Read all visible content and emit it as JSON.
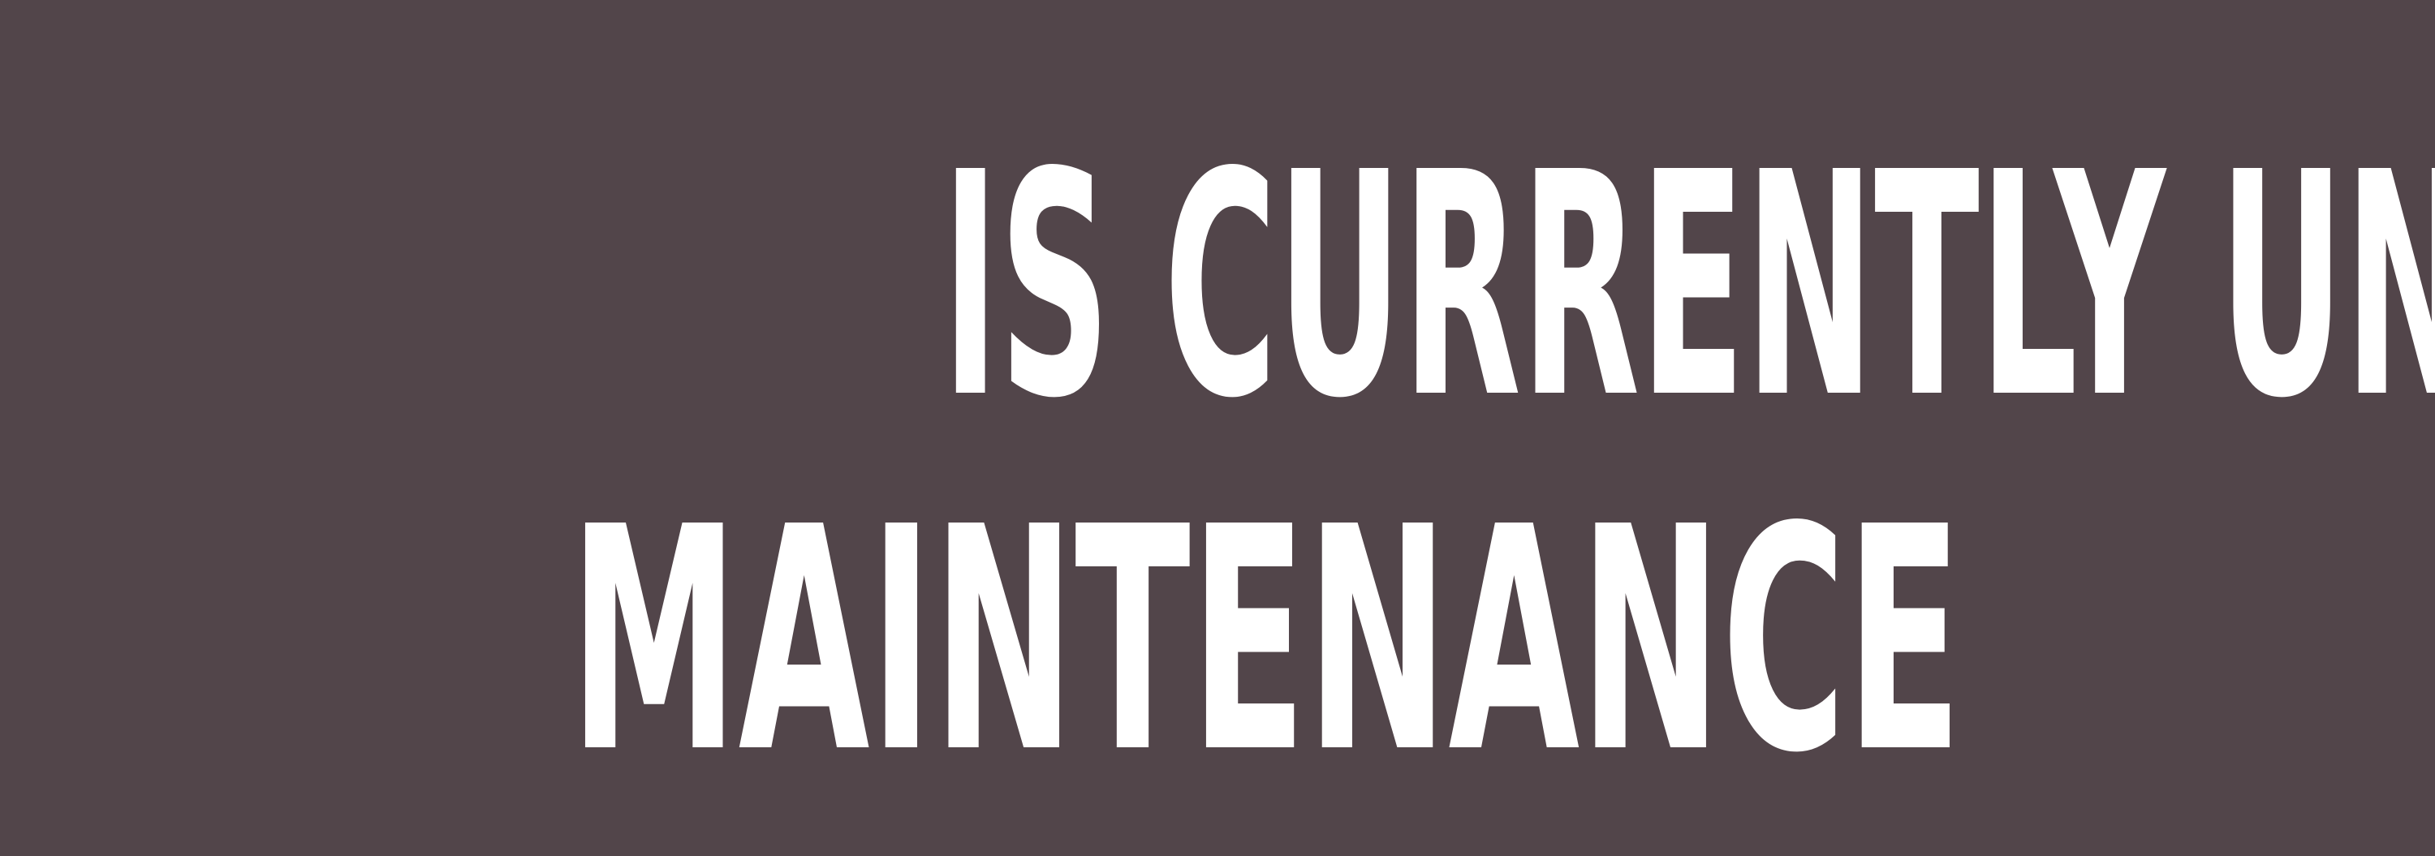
{
  "banner": {
    "background_color": "#52454a",
    "text_color": "#ffffff",
    "line_1": "IS CURRENTLY UNDER",
    "line_2": "MAINTENANCE"
  }
}
